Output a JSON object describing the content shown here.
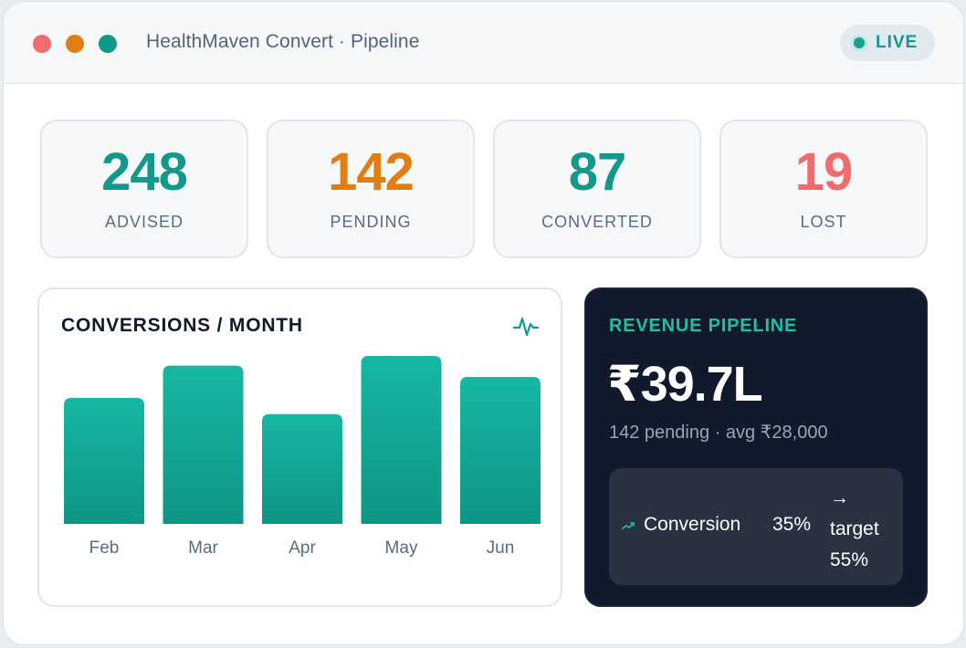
{
  "window": {
    "title": "HealthMaven Convert · Pipeline",
    "live_label": "LIVE"
  },
  "stats": [
    {
      "value": "248",
      "label": "ADVISED",
      "color": "#13998a"
    },
    {
      "value": "142",
      "label": "PENDING",
      "color": "#e07e12"
    },
    {
      "value": "87",
      "label": "CONVERTED",
      "color": "#13998a"
    },
    {
      "value": "19",
      "label": "LOST",
      "color": "#f06b6b"
    }
  ],
  "chart": {
    "title": "CONVERSIONS / MONTH",
    "icon": "pulse-icon"
  },
  "chart_data": {
    "type": "bar",
    "title": "CONVERSIONS / MONTH",
    "categories": [
      "Feb",
      "Mar",
      "Apr",
      "May",
      "Jun"
    ],
    "values": [
      78,
      98,
      68,
      104,
      91
    ],
    "ylim": [
      0,
      104
    ],
    "grid": false,
    "colors": {
      "bar_top": "#16b8a3",
      "bar_bottom": "#0e9585"
    }
  },
  "revenue": {
    "title": "REVENUE PIPELINE",
    "amount": "₹39.7L",
    "subtitle": "142 pending · avg ₹28,000",
    "conversion_label": "Conversion",
    "conversion_value": "35%",
    "target_arrow": "→",
    "target_label": "target",
    "target_value": "55%",
    "trend_icon": "trend-up-icon"
  },
  "colors": {
    "accent": "#13998a",
    "pending": "#e07e12",
    "lost": "#f06b6b",
    "dark_card": "#111a2c"
  }
}
